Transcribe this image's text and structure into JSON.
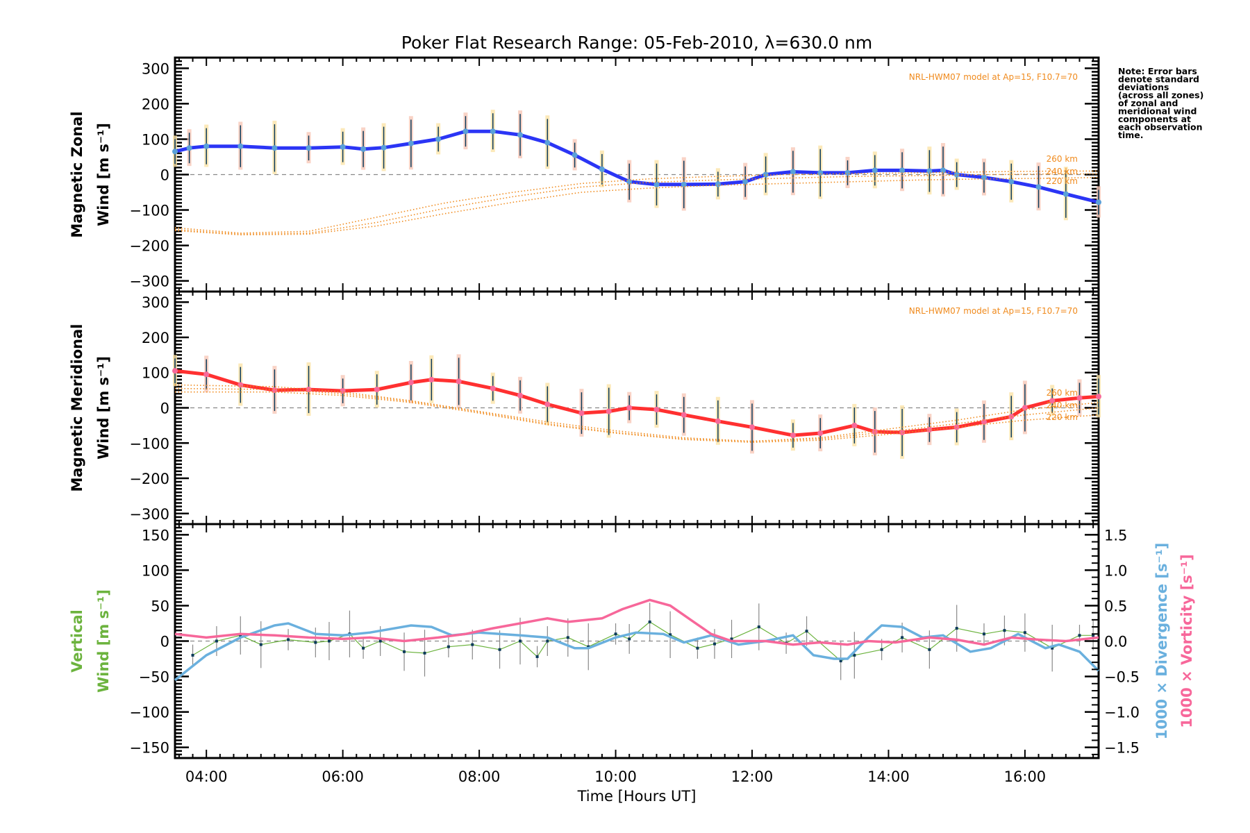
{
  "chart_data": [
    {
      "type": "line",
      "title": "Poker Flat Research Range: 05-Feb-2010, λ=630.0 nm",
      "ylabel_line1": "Magnetic Zonal",
      "ylabel_line2": "Wind [m s⁻¹]",
      "ylim": [
        -330,
        330
      ],
      "yticks": [
        300,
        200,
        100,
        0,
        -100,
        -200,
        -300
      ],
      "model_annotation": "NRL-HWM07 model at Ap=15, F10.7=70",
      "model_labels": [
        "260 km",
        "240 km",
        "220 km"
      ],
      "series": [
        {
          "name": "Zonal wind",
          "color": "#2b35f5",
          "x": [
            3.54,
            3.75,
            4.0,
            4.5,
            5.0,
            5.5,
            6.0,
            6.3,
            6.6,
            7.0,
            7.4,
            7.8,
            8.2,
            8.6,
            9.0,
            9.4,
            9.8,
            10.2,
            10.6,
            11.0,
            11.5,
            11.9,
            12.2,
            12.6,
            13.0,
            13.4,
            13.8,
            14.2,
            14.6,
            14.8,
            15.0,
            15.4,
            15.8,
            16.2,
            16.6,
            17.08
          ],
          "y": [
            65,
            75,
            80,
            80,
            75,
            75,
            78,
            72,
            76,
            88,
            100,
            122,
            122,
            112,
            90,
            55,
            15,
            -20,
            -28,
            -28,
            -27,
            -20,
            0,
            8,
            5,
            5,
            12,
            12,
            10,
            12,
            0,
            -8,
            -20,
            -35,
            -55,
            -78
          ]
        },
        {
          "name": "HWM07 260 km",
          "color": "#f08a1c",
          "x": [
            3.54,
            4.5,
            5.5,
            6.5,
            7.5,
            8.5,
            9.5,
            10.5,
            11.5,
            12.5,
            13.5,
            14.5,
            15.5,
            16.5,
            17.08
          ],
          "y": [
            -150,
            -165,
            -160,
            -120,
            -80,
            -50,
            -25,
            -12,
            -5,
            0,
            3,
            5,
            8,
            10,
            10
          ]
        },
        {
          "name": "HWM07 240 km",
          "color": "#f08a1c",
          "x": [
            3.54,
            4.5,
            5.5,
            6.5,
            7.5,
            8.5,
            9.5,
            10.5,
            11.5,
            12.5,
            13.5,
            14.5,
            15.5,
            16.5,
            17.08
          ],
          "y": [
            -155,
            -168,
            -165,
            -135,
            -95,
            -62,
            -35,
            -22,
            -15,
            -10,
            -5,
            -3,
            0,
            2,
            2
          ]
        },
        {
          "name": "HWM07 220 km",
          "color": "#f08a1c",
          "x": [
            3.54,
            4.5,
            5.5,
            6.5,
            7.5,
            8.5,
            9.5,
            10.5,
            11.5,
            12.5,
            13.5,
            14.5,
            15.5,
            16.5,
            17.08
          ],
          "y": [
            -158,
            -170,
            -168,
            -145,
            -110,
            -78,
            -50,
            -38,
            -30,
            -25,
            -20,
            -15,
            -12,
            -10,
            -8
          ]
        }
      ]
    },
    {
      "type": "line",
      "ylabel_line1": "Magnetic Meridional",
      "ylabel_line2": "Wind [m s⁻¹]",
      "ylim": [
        -330,
        330
      ],
      "yticks": [
        300,
        200,
        100,
        0,
        -100,
        -200,
        -300
      ],
      "model_annotation": "NRL-HWM07 model at Ap=15, F10.7=70",
      "model_labels": [
        "260 km",
        "240 km",
        "220 km"
      ],
      "series": [
        {
          "name": "Meridional wind",
          "color": "#ff3030",
          "x": [
            3.54,
            4.0,
            4.5,
            5.0,
            5.5,
            6.0,
            6.5,
            7.0,
            7.3,
            7.7,
            8.2,
            8.6,
            9.0,
            9.5,
            9.9,
            10.2,
            10.6,
            11.0,
            11.5,
            12.0,
            12.6,
            13.0,
            13.5,
            13.8,
            14.2,
            14.6,
            15.0,
            15.4,
            15.8,
            16.0,
            16.4,
            16.8,
            17.08
          ],
          "y": [
            105,
            95,
            65,
            50,
            52,
            48,
            52,
            72,
            80,
            75,
            55,
            35,
            10,
            -15,
            -10,
            0,
            -5,
            -20,
            -38,
            -55,
            -78,
            -72,
            -50,
            -68,
            -70,
            -62,
            -55,
            -40,
            -25,
            0,
            20,
            28,
            32
          ]
        },
        {
          "name": "HWM07 260 km",
          "color": "#f08a1c",
          "x": [
            3.54,
            5.0,
            6.0,
            7.0,
            8.0,
            9.0,
            10.0,
            11.0,
            12.0,
            13.0,
            14.0,
            15.0,
            16.0,
            17.08
          ],
          "y": [
            65,
            60,
            45,
            20,
            -10,
            -40,
            -65,
            -85,
            -95,
            -85,
            -60,
            -35,
            -5,
            15
          ]
        },
        {
          "name": "HWM07 240 km",
          "color": "#f08a1c",
          "x": [
            3.54,
            5.0,
            6.0,
            7.0,
            8.0,
            9.0,
            10.0,
            11.0,
            12.0,
            13.0,
            14.0,
            15.0,
            16.0,
            17.08
          ],
          "y": [
            55,
            52,
            40,
            18,
            -12,
            -45,
            -70,
            -88,
            -95,
            -88,
            -68,
            -45,
            -20,
            0
          ]
        },
        {
          "name": "HWM07 220 km",
          "color": "#f08a1c",
          "x": [
            3.54,
            5.0,
            6.0,
            7.0,
            8.0,
            9.0,
            10.0,
            11.0,
            12.0,
            13.0,
            14.0,
            15.0,
            16.0,
            17.08
          ],
          "y": [
            45,
            45,
            35,
            15,
            -15,
            -48,
            -72,
            -90,
            -98,
            -92,
            -75,
            -55,
            -35,
            -20
          ]
        }
      ]
    },
    {
      "type": "line",
      "ylabel_line1": "Vertical",
      "ylabel_line2": "Wind [m s⁻¹]",
      "ylim": [
        -165,
        165
      ],
      "yticks": [
        150,
        100,
        50,
        0,
        -50,
        -100,
        -150
      ],
      "y2lim": [
        -1.65,
        1.65
      ],
      "y2ticks": [
        "1.5",
        "1.0",
        "0.5",
        "0.0",
        "-0.5",
        "-1.0",
        "-1.5"
      ],
      "y2label_divergence": "1000 × Divergence [s⁻¹]",
      "y2label_vorticity": "1000 × Vorticity [s⁻¹]",
      "xlabel": "Time [Hours UT]",
      "xlim": [
        3.54,
        17.08
      ],
      "xticks": [
        "04:00",
        "06:00",
        "08:00",
        "10:00",
        "12:00",
        "14:00",
        "16:00"
      ],
      "series": [
        {
          "name": "Vertical wind",
          "color": "#6cb33e",
          "axis": "left",
          "x": [
            3.8,
            4.15,
            4.5,
            4.8,
            5.2,
            5.6,
            5.8,
            6.1,
            6.3,
            6.55,
            6.9,
            7.2,
            7.55,
            7.9,
            8.3,
            8.6,
            8.85,
            9.0,
            9.3,
            9.6,
            10.0,
            10.2,
            10.5,
            10.8,
            11.2,
            11.45,
            11.7,
            12.1,
            12.5,
            12.8,
            13.3,
            13.5,
            13.9,
            14.2,
            14.6,
            15.0,
            15.4,
            15.7,
            16.0,
            16.4,
            16.8,
            17.0
          ],
          "y": [
            -20,
            0,
            8,
            -5,
            2,
            -2,
            0,
            10,
            -10,
            0,
            -15,
            -17,
            -8,
            -5,
            -12,
            0,
            -22,
            0,
            5,
            -8,
            10,
            3,
            27,
            9,
            -10,
            -4,
            3,
            20,
            -3,
            14,
            -28,
            -20,
            -12,
            5,
            -12,
            18,
            10,
            15,
            12,
            -10,
            8,
            8
          ]
        },
        {
          "name": "1000 x Divergence",
          "color": "#6ab0de",
          "axis": "right",
          "x": [
            3.54,
            4.0,
            4.5,
            5.0,
            5.2,
            5.6,
            6.0,
            6.4,
            7.0,
            7.3,
            7.6,
            8.0,
            8.6,
            9.0,
            9.4,
            9.6,
            10.0,
            10.3,
            10.7,
            11.0,
            11.4,
            11.8,
            12.2,
            12.6,
            12.9,
            13.2,
            13.4,
            13.7,
            13.9,
            14.2,
            14.5,
            14.8,
            15.2,
            15.5,
            15.9,
            16.3,
            16.5,
            16.8,
            17.08
          ],
          "y": [
            -0.55,
            -0.2,
            0.05,
            0.22,
            0.25,
            0.1,
            0.08,
            0.12,
            0.22,
            0.2,
            0.08,
            0.12,
            0.08,
            0.05,
            -0.1,
            -0.1,
            0.05,
            0.12,
            0.1,
            -0.02,
            0.08,
            -0.05,
            0.0,
            0.08,
            -0.2,
            -0.25,
            -0.25,
            0.05,
            0.22,
            0.2,
            0.05,
            0.08,
            -0.15,
            -0.1,
            0.1,
            -0.1,
            -0.05,
            -0.15,
            -0.42
          ]
        },
        {
          "name": "1000 x Vorticity",
          "color": "#f7679a",
          "axis": "right",
          "x": [
            3.54,
            4.0,
            4.5,
            5.0,
            5.5,
            6.0,
            6.4,
            6.9,
            7.4,
            7.8,
            8.2,
            8.6,
            9.0,
            9.3,
            9.8,
            10.1,
            10.5,
            10.8,
            11.1,
            11.4,
            11.7,
            12.2,
            12.6,
            13.0,
            13.4,
            13.7,
            14.1,
            14.6,
            15.0,
            15.4,
            15.8,
            16.2,
            16.6,
            17.08
          ],
          "y": [
            0.1,
            0.05,
            0.1,
            0.08,
            0.05,
            0.03,
            0.05,
            0.0,
            0.05,
            0.1,
            0.18,
            0.25,
            0.32,
            0.27,
            0.32,
            0.45,
            0.58,
            0.5,
            0.3,
            0.1,
            0.0,
            0.0,
            -0.05,
            -0.02,
            -0.05,
            0.0,
            -0.02,
            0.05,
            0.02,
            -0.05,
            0.05,
            0.02,
            0.0,
            0.05
          ]
        }
      ]
    }
  ],
  "note": [
    "Note: Error bars",
    "denote standard",
    "deviations",
    "(across all zones)",
    "of zonal and",
    "meridional wind",
    "components at",
    "each observation",
    "time."
  ]
}
